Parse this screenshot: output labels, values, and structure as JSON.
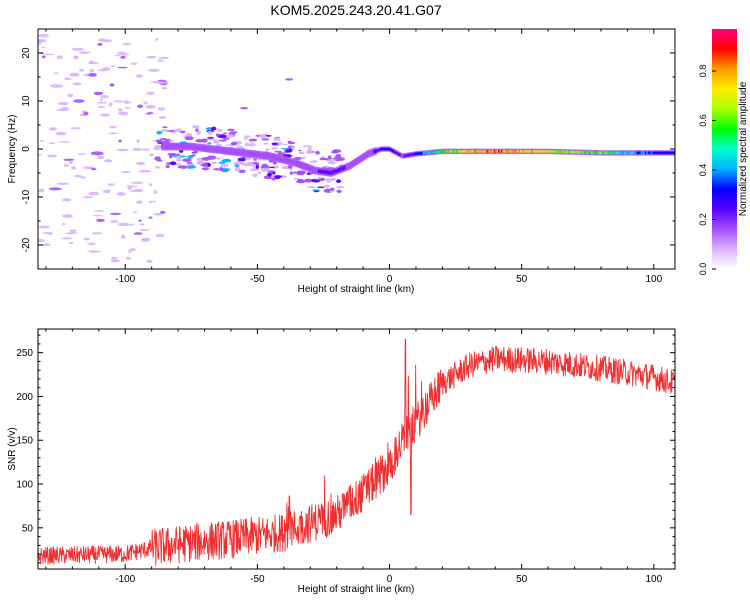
{
  "title": "KOM5.2025.243.20.41.G07",
  "colors": {
    "snr_line": "#f03030",
    "colormap": [
      "#ffffff",
      "#d9b3ff",
      "#a64dff",
      "#5500ff",
      "#0000ff",
      "#00b3ff",
      "#00ffcc",
      "#00ff00",
      "#aaff00",
      "#ffee00",
      "#ff9900",
      "#ff0000",
      "#ff0080"
    ]
  },
  "chart_data": [
    {
      "type": "heatmap",
      "xlabel": "Height of straight line (km)",
      "ylabel": "Frequency (Hz)",
      "xlim": [
        -133,
        108
      ],
      "ylim": [
        -25,
        25
      ],
      "xticks": [
        -100,
        -50,
        0,
        50,
        100
      ],
      "yticks": [
        -20,
        -10,
        0,
        10,
        20
      ],
      "colorbar": {
        "label": "Normalized spectral amplitude",
        "range": [
          0,
          0.97
        ],
        "ticks": [
          "0.0",
          "0.2",
          "0.4",
          "0.6",
          "0.8"
        ]
      },
      "ridge_x": [
        -85,
        -75,
        -60,
        -45,
        -35,
        -28,
        -22,
        -15,
        -8,
        -3,
        0,
        5,
        10,
        20,
        40,
        60,
        80,
        100,
        108
      ],
      "ridge_freq": [
        0.5,
        0.5,
        -0.5,
        -1.5,
        -3,
        -4.5,
        -5,
        -3.5,
        -1,
        0,
        0,
        -1.5,
        -1,
        -0.5,
        -0.5,
        -0.5,
        -0.8,
        -0.8,
        -0.8
      ],
      "ridge_amplitude": [
        0.2,
        0.2,
        0.15,
        0.15,
        0.15,
        0.2,
        0.25,
        0.2,
        0.15,
        0.3,
        0.35,
        0.2,
        0.3,
        0.6,
        0.85,
        0.7,
        0.6,
        0.3,
        0.3
      ]
    },
    {
      "type": "line",
      "xlabel": "Height of straight line (km)",
      "ylabel": "SNR (v/v)",
      "xlim": [
        -133,
        108
      ],
      "ylim": [
        3,
        277
      ],
      "xticks": [
        -100,
        -50,
        0,
        50,
        100
      ],
      "yticks": [
        50,
        100,
        150,
        200,
        250
      ],
      "trend_x": [
        -133,
        -100,
        -90,
        -75,
        -60,
        -40,
        -20,
        -10,
        0,
        5,
        10,
        20,
        30,
        40,
        60,
        80,
        100,
        108
      ],
      "trend_y": [
        18,
        20,
        27,
        33,
        37,
        45,
        65,
        90,
        120,
        150,
        170,
        215,
        235,
        243,
        240,
        232,
        222,
        215
      ],
      "noise_amplitude": 20,
      "spikes": [
        [
          6,
          265
        ],
        [
          8,
          65
        ]
      ]
    }
  ]
}
